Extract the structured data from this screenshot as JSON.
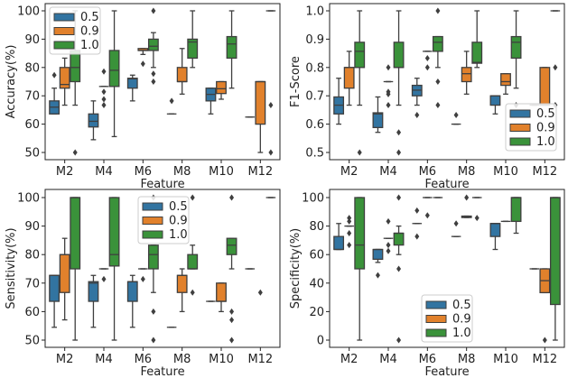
{
  "colors": {
    "0.5": "#3274a1",
    "0.9": "#e1812c",
    "1.0": "#3a923a",
    "line": "#3f3f3f"
  },
  "chart_data": [
    {
      "type": "boxplot",
      "title": "",
      "xlabel": "Feature",
      "ylabel": "Accuracy(%)",
      "ylim": [
        50,
        100
      ],
      "yticks": [
        "50",
        "60",
        "70",
        "80",
        "90",
        "100"
      ],
      "ytick_values": [
        50,
        60,
        70,
        80,
        90,
        100
      ],
      "categories": [
        "M2",
        "M4",
        "M6",
        "M8",
        "M10",
        "M12"
      ],
      "legend": {
        "placement": "upper-left",
        "entries": [
          "0.5",
          "0.9",
          "1.0"
        ]
      },
      "series": [
        {
          "name": "0.5",
          "boxes": [
            [
              63.6,
              63.6,
              66,
              68.2,
              72.7,
              [
                77.3
              ]
            ],
            [
              54.5,
              59,
              61,
              63.6,
              68.2,
              []
            ],
            [
              68.2,
              72.7,
              76,
              76.2,
              77.3,
              []
            ],
            [
              63.6,
              63.6,
              63.6,
              63.6,
              63.6,
              [
                68.2
              ]
            ],
            [
              63.6,
              68.2,
              70.5,
              72.7,
              72.7,
              []
            ],
            [
              62.5,
              62.5,
              62.5,
              62.5,
              62.5,
              []
            ]
          ]
        },
        {
          "name": "0.9",
          "boxes": [
            [
              66.7,
              72.7,
              74,
              80,
              83.3,
              []
            ],
            [
              73.3,
              73.3,
              73.3,
              73.3,
              73.3,
              [
                78.6,
                71.4,
                68.8,
                66.7
              ]
            ],
            [
              84.6,
              86,
              86,
              86.7,
              86.7,
              [
                81.3
              ]
            ],
            [
              70.6,
              75,
              75,
              80,
              86.7,
              []
            ],
            [
              68.8,
              70.8,
              72.5,
              75,
              75,
              []
            ],
            [
              50,
              60,
              75,
              75,
              75,
              []
            ]
          ]
        },
        {
          "name": "1.0",
          "boxes": [
            [
              66.7,
              75,
              80,
              86,
              100,
              [
                50
              ]
            ],
            [
              55.6,
              73.3,
              79,
              86,
              100,
              []
            ],
            [
              80,
              86,
              87.5,
              90,
              92.3,
              [
                100,
                77.8,
                75
              ]
            ],
            [
              80,
              83.3,
              89,
              90,
              100,
              []
            ],
            [
              72.7,
              83.3,
              88.3,
              90.9,
              100,
              []
            ],
            [
              100,
              100,
              100,
              100,
              100,
              [
                66.7,
                50
              ]
            ]
          ]
        }
      ]
    },
    {
      "type": "boxplot",
      "title": "",
      "xlabel": "Feature",
      "ylabel": "F1-Score",
      "ylim": [
        0.5,
        1.0
      ],
      "yticks": [
        "0.5",
        "0.6",
        "0.7",
        "0.8",
        "0.9",
        "1.0"
      ],
      "ytick_values": [
        0.5,
        0.6,
        0.7,
        0.8,
        0.9,
        1.0
      ],
      "categories": [
        "M2",
        "M4",
        "M6",
        "M8",
        "M10",
        "M12"
      ],
      "legend": {
        "placement": "lower-right",
        "entries": [
          "0.5",
          "0.9",
          "1.0"
        ]
      },
      "series": [
        {
          "name": "0.5",
          "boxes": [
            [
              0.6,
              0.636,
              0.667,
              0.696,
              0.762,
              []
            ],
            [
              0.571,
              0.588,
              0.636,
              0.64,
              0.696,
              []
            ],
            [
              0.667,
              0.7,
              0.72,
              0.737,
              0.762,
              [
                0.632
              ]
            ],
            [
              0.6,
              0.6,
              0.6,
              0.6,
              0.6,
              [
                0.632
              ]
            ],
            [
              0.636,
              0.667,
              0.7,
              0.7,
              0.7,
              []
            ],
            [
              0.667,
              0.667,
              0.667,
              0.667,
              0.667,
              []
            ]
          ]
        },
        {
          "name": "0.9",
          "boxes": [
            [
              0.667,
              0.727,
              0.8,
              0.8,
              0.857,
              []
            ],
            [
              0.75,
              0.75,
              0.75,
              0.75,
              0.75,
              [
                0.8,
                0.714,
                0.706,
                0.667
              ]
            ],
            [
              0.857,
              0.857,
              0.857,
              0.857,
              0.857,
              [
                0.833,
                0.8
              ]
            ],
            [
              0.706,
              0.75,
              0.778,
              0.8,
              0.857,
              []
            ],
            [
              0.706,
              0.737,
              0.75,
              0.778,
              0.778,
              []
            ],
            [
              0.667,
              0.667,
              0.667,
              0.8,
              0.8,
              []
            ]
          ]
        },
        {
          "name": "1.0",
          "boxes": [
            [
              0.667,
              0.8,
              0.857,
              0.889,
              1.0,
              [
                0.5
              ]
            ],
            [
              0.667,
              0.8,
              0.8,
              0.889,
              1.0,
              [
                0.571,
                0.5
              ]
            ],
            [
              0.8,
              0.857,
              0.889,
              0.909,
              0.909,
              [
                1.0,
                0.75,
                0.667
              ]
            ],
            [
              0.8,
              0.815,
              0.818,
              0.889,
              1.0,
              []
            ],
            [
              0.727,
              0.833,
              0.889,
              0.909,
              1.0,
              [
                0.667
              ]
            ],
            [
              1.0,
              1.0,
              1.0,
              1.0,
              1.0,
              [
                0.8,
                0.667
              ]
            ]
          ]
        }
      ]
    },
    {
      "type": "boxplot",
      "title": "",
      "xlabel": "Feature",
      "ylabel": "Sensitivity(%)",
      "ylim": [
        50,
        100
      ],
      "yticks": [
        "50",
        "60",
        "70",
        "80",
        "90",
        "100"
      ],
      "ytick_values": [
        50,
        60,
        70,
        80,
        90,
        100
      ],
      "categories": [
        "M2",
        "M4",
        "M6",
        "M8",
        "M10",
        "M12"
      ],
      "legend": {
        "placement": "upper-center",
        "entries": [
          "0.5",
          "0.9",
          "1.0"
        ]
      },
      "series": [
        {
          "name": "0.5",
          "boxes": [
            [
              54.5,
              63.6,
              72.7,
              72.7,
              72.7,
              []
            ],
            [
              54.5,
              63.6,
              70,
              70.5,
              72.7,
              []
            ],
            [
              54.5,
              63.6,
              70.5,
              70.5,
              72.7,
              []
            ],
            [
              54.5,
              54.5,
              54.5,
              54.5,
              54.5,
              []
            ],
            [
              63.6,
              63.6,
              63.6,
              63.6,
              63.6,
              []
            ],
            [
              75,
              75,
              75,
              75,
              75,
              []
            ]
          ]
        },
        {
          "name": "0.9",
          "boxes": [
            [
              57.1,
              66.7,
              80,
              80,
              85.7,
              []
            ],
            [
              75,
              75,
              75,
              75,
              75,
              [
                71.4
              ]
            ],
            [
              75,
              75,
              75,
              75,
              75,
              [
                71.4
              ]
            ],
            [
              60,
              66.7,
              72.7,
              72.7,
              75,
              []
            ],
            [
              60,
              63.6,
              63.6,
              70,
              70,
              []
            ],
            [
              null,
              null,
              null,
              null,
              null,
              [
                66.7
              ]
            ]
          ]
        },
        {
          "name": "1.0",
          "boxes": [
            [
              50,
              75,
              100,
              100,
              100,
              []
            ],
            [
              50,
              76,
              80,
              100,
              100,
              []
            ],
            [
              66.7,
              75,
              80,
              83.3,
              83.3,
              [
                100,
                60,
                50
              ]
            ],
            [
              75,
              75,
              75,
              80,
              83.3,
              [
                100,
                66.7
              ]
            ],
            [
              75,
              80,
              83.3,
              85.7,
              85.7,
              [
                100,
                60,
                57.1,
                50
              ]
            ],
            [
              100,
              100,
              100,
              100,
              100,
              []
            ]
          ]
        }
      ]
    },
    {
      "type": "boxplot",
      "title": "",
      "xlabel": "Feature",
      "ylabel": "Specificity(%)",
      "ylim": [
        0,
        100
      ],
      "yticks": [
        "0",
        "20",
        "40",
        "60",
        "80",
        "100"
      ],
      "ytick_values": [
        0,
        20,
        40,
        60,
        80,
        100
      ],
      "categories": [
        "M2",
        "M4",
        "M6",
        "M8",
        "M10",
        "M12"
      ],
      "legend": {
        "placement": "lower-center",
        "entries": [
          "0.5",
          "0.9",
          "1.0"
        ]
      },
      "series": [
        {
          "name": "0.5",
          "boxes": [
            [
              63.6,
              63.6,
              63.6,
              72.7,
              81.8,
              []
            ],
            [
              54.5,
              56.7,
              63.6,
              63.6,
              63.6,
              [
                45.5
              ]
            ],
            [
              81.8,
              81.8,
              81.8,
              81.8,
              81.8,
              [
                90.9,
                72.7
              ]
            ],
            [
              72.7,
              72.7,
              72.7,
              72.7,
              72.7,
              [
                81.8
              ]
            ],
            [
              63.6,
              72.7,
              81.8,
              81.8,
              81.8,
              []
            ],
            [
              50,
              50,
              50,
              50,
              50,
              []
            ]
          ]
        },
        {
          "name": "0.9",
          "boxes": [
            [
              80,
              80,
              80,
              80,
              80,
              [
                85.7,
                83.3,
                75,
                66.7
              ]
            ],
            [
              71.4,
              71.4,
              71.4,
              71.4,
              71.4,
              [
                83.3,
                66.7,
                62.5
              ]
            ],
            [
              100,
              100,
              100,
              100,
              100,
              [
                87.5
              ]
            ],
            [
              86,
              86,
              86.7,
              87,
              87,
              [
                100
              ]
            ],
            [
              83.3,
              83.3,
              83.3,
              83.3,
              83.3,
              []
            ],
            [
              33.3,
              33.3,
              41.7,
              50,
              50,
              [
                0
              ]
            ]
          ]
        },
        {
          "name": "1.0",
          "boxes": [
            [
              0,
              50,
              66.7,
              100,
              100,
              []
            ],
            [
              60,
              66.7,
              75,
              75,
              80,
              [
                100,
                50,
                0
              ]
            ],
            [
              100,
              100,
              100,
              100,
              100,
              []
            ],
            [
              100,
              100,
              100,
              100,
              100,
              [
                85.7
              ]
            ],
            [
              75,
              83.3,
              100,
              100,
              100,
              []
            ],
            [
              0,
              25,
              100,
              100,
              100,
              []
            ]
          ]
        }
      ]
    }
  ]
}
